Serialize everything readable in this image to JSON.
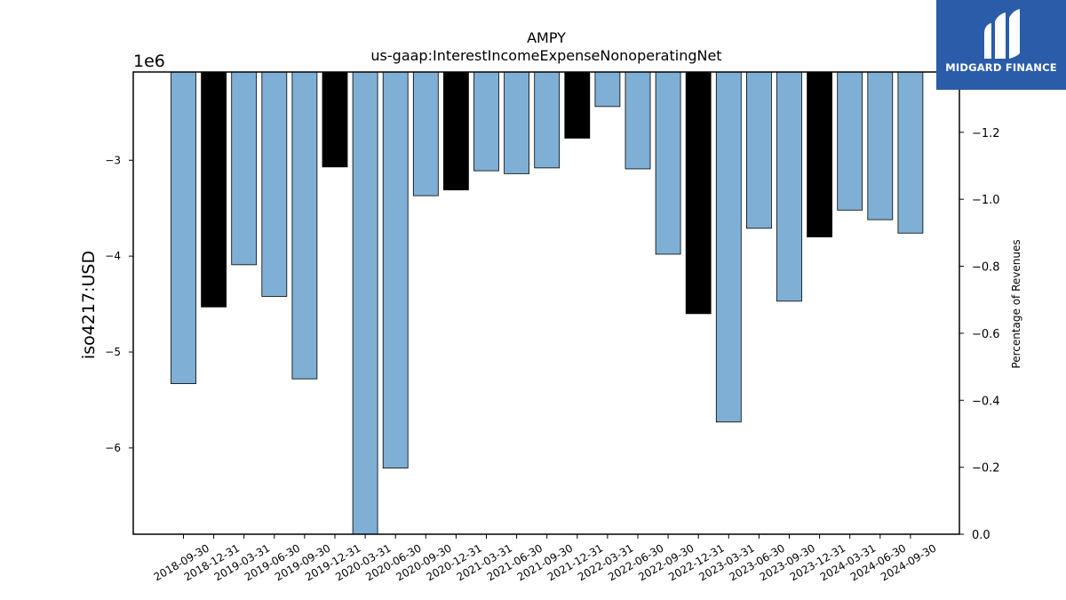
{
  "chart_data": {
    "type": "bar",
    "title": "AMPY",
    "subtitle": "us-gaap:InterestIncomeExpenseNonoperatingNet",
    "ylabel": "iso4217:USD",
    "y_offset_label": "1e6",
    "y2label": "Percentage of Revenues",
    "ylim": [
      -6.9,
      -2.08
    ],
    "y2lim": [
      0.0,
      -1.38
    ],
    "y_ticks": [
      -3,
      -4,
      -5,
      -6
    ],
    "y_tick_labels": [
      "−3",
      "−4",
      "−5",
      "−6"
    ],
    "y2_ticks": [
      -1.2,
      -1.0,
      -0.8,
      -0.6,
      -0.4,
      -0.2,
      0.0
    ],
    "y2_tick_labels": [
      "−1.2",
      "−1.0",
      "−0.8",
      "−0.6",
      "−0.4",
      "−0.2",
      "0.0"
    ],
    "grid": false,
    "categories": [
      "2018-09-30",
      "2018-12-31",
      "2019-03-31",
      "2019-06-30",
      "2019-09-30",
      "2019-12-31",
      "2020-03-31",
      "2020-06-30",
      "2020-09-30",
      "2020-12-31",
      "2021-03-31",
      "2021-06-30",
      "2021-09-30",
      "2021-12-31",
      "2022-03-31",
      "2022-06-30",
      "2022-09-30",
      "2022-12-31",
      "2023-03-31",
      "2023-06-30",
      "2023-09-30",
      "2023-12-31",
      "2024-03-31",
      "2024-06-30",
      "2024-09-30"
    ],
    "values": [
      -5.33,
      -4.53,
      -4.09,
      -4.42,
      -5.28,
      -3.07,
      -6.9,
      -6.21,
      -3.37,
      -3.31,
      -3.11,
      -3.14,
      -3.08,
      -2.77,
      -2.44,
      -3.09,
      -3.98,
      -4.6,
      -5.73,
      -3.71,
      -4.47,
      -3.8,
      -3.52,
      -3.62,
      -3.76
    ],
    "highlight": [
      false,
      true,
      false,
      false,
      false,
      true,
      false,
      false,
      false,
      true,
      false,
      false,
      false,
      true,
      false,
      false,
      false,
      true,
      false,
      false,
      false,
      true,
      false,
      false,
      false
    ],
    "colors": {
      "normal": "#7fafd5",
      "highlight": "#000000",
      "edge": "#000000",
      "axis": "#000000"
    }
  },
  "logo": {
    "text": "MIDGARD FINANCE",
    "background": "#2a5caa",
    "icon": "midgard-logo-icon"
  }
}
